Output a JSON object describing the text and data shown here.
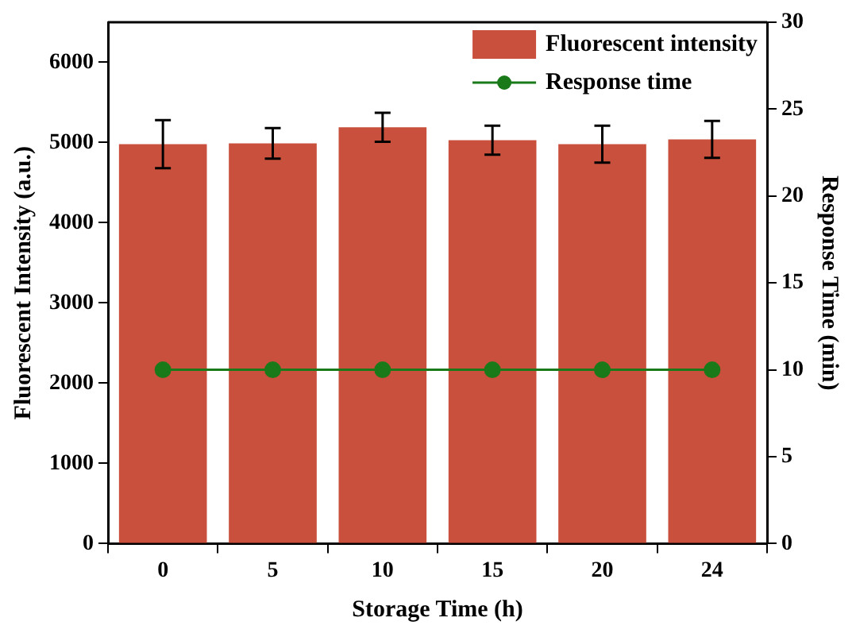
{
  "chart_data": {
    "type": "bar",
    "xlabel": "Storage Time (h)",
    "ylabel": "Fluorescent Intensity (a.u.)",
    "y2label": "Response Time (min)",
    "categories": [
      "0",
      "5",
      "10",
      "15",
      "20",
      "24"
    ],
    "series": [
      {
        "name": "Fluorescent intensity",
        "color": "#c9503c",
        "values": [
          4980,
          4990,
          5190,
          5030,
          4980,
          5040
        ],
        "errors": [
          300,
          190,
          180,
          180,
          230,
          230
        ]
      },
      {
        "name": "Response time",
        "type": "line",
        "axis": "y2",
        "color": "#1a7a1a",
        "values": [
          10,
          10,
          10,
          10,
          10,
          10
        ],
        "marker": "circle"
      }
    ],
    "ylim": [
      0,
      6500
    ],
    "yticks": [
      0,
      1000,
      2000,
      3000,
      4000,
      5000,
      6000
    ],
    "y2lim": [
      0,
      30
    ],
    "y2ticks": [
      0,
      5,
      10,
      15,
      20,
      25,
      30
    ],
    "grid": false,
    "legend": "top right"
  }
}
